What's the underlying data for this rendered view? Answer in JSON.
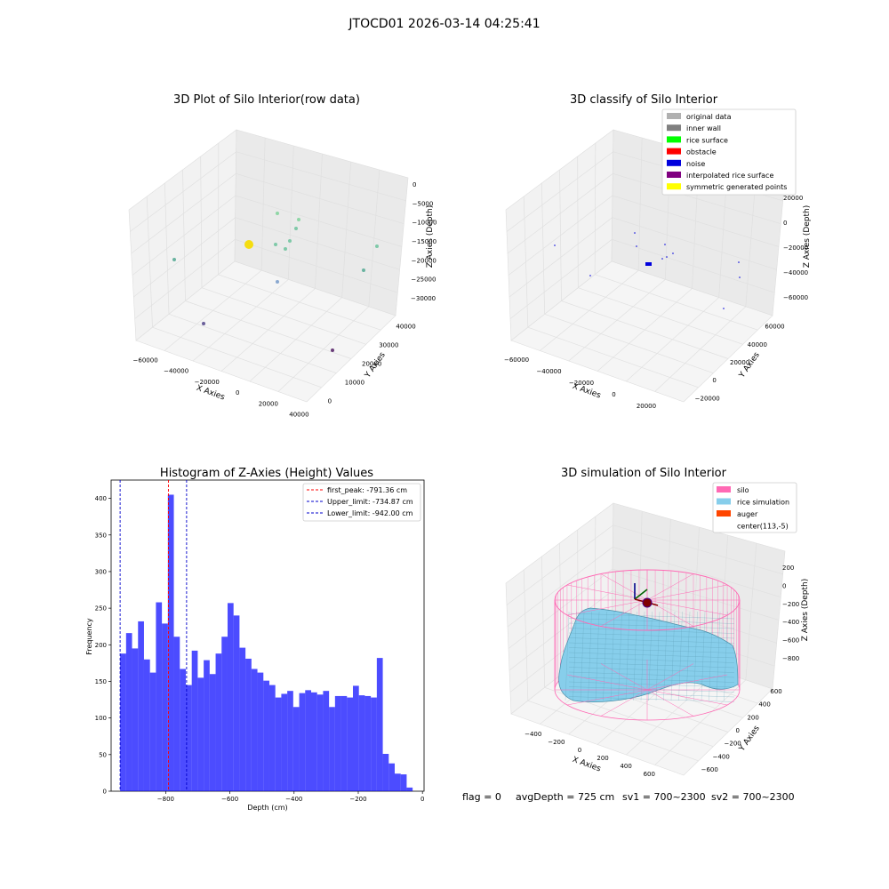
{
  "figure": {
    "suptitle": "JTOCD01 2026-03-14 04:25:41",
    "footer": {
      "flag": "flag = 0",
      "avg_depth": "avgDepth = 725 cm",
      "sv1": "sv1 = 700~2300",
      "sv2": "sv2 = 700~2300"
    }
  },
  "chart_data": [
    {
      "type": "scatter",
      "title": "3D Plot of Silo Interior(row data)",
      "xlabel": "X Axies",
      "ylabel": "Y Axies",
      "zlabel": "Z Axies (Depth)",
      "x_ticks": [
        "−60000",
        "−40000",
        "−20000",
        "0",
        "20000",
        "40000"
      ],
      "y_ticks": [
        "0",
        "10000",
        "20000",
        "30000",
        "40000"
      ],
      "z_ticks": [
        "0",
        "−5000",
        "−10000",
        "−15000",
        "−20000",
        "−25000",
        "−30000"
      ],
      "colors": [
        "#8fd6a6",
        "#7fc9a8",
        "#6ab3a0",
        "#8aa8d0",
        "#6a5f9a",
        "#6a3d7a",
        "#f5dd10"
      ],
      "grid": true
    },
    {
      "type": "scatter",
      "title": "3D classify of Silo Interior",
      "xlabel": "X Axies",
      "ylabel": "Y Axies",
      "zlabel": "Z Axies (Depth)",
      "x_ticks": [
        "−60000",
        "−40000",
        "−20000",
        "0",
        "20000"
      ],
      "y_ticks": [
        "−20000",
        "0",
        "20000",
        "40000",
        "60000"
      ],
      "z_ticks": [
        "20000",
        "0",
        "−20000",
        "−40000",
        "−60000"
      ],
      "legend": [
        {
          "label": "original data",
          "color": "#b0b0b0"
        },
        {
          "label": "inner wall",
          "color": "#808080"
        },
        {
          "label": "rice surface",
          "color": "#00ff00"
        },
        {
          "label": "obstacle",
          "color": "#ff0000"
        },
        {
          "label": "noise",
          "color": "#0000dd"
        },
        {
          "label": "interpolated rice surface",
          "color": "#800080"
        },
        {
          "label": "symmetric generated points",
          "color": "#ffff00"
        }
      ],
      "legend_position": "top-right",
      "grid": true
    },
    {
      "type": "bar",
      "title": "Histogram of Z-Axies (Height) Values",
      "xlabel": "Depth (cm)",
      "ylabel": "Frequency",
      "xlim": [
        -970,
        5
      ],
      "ylim": [
        0,
        425
      ],
      "bin_start": -942,
      "bin_width": 18.6,
      "values": [
        188,
        216,
        195,
        232,
        180,
        162,
        258,
        229,
        405,
        211,
        167,
        145,
        192,
        155,
        179,
        160,
        188,
        211,
        257,
        240,
        196,
        181,
        167,
        162,
        151,
        145,
        128,
        133,
        137,
        115,
        134,
        138,
        135,
        132,
        137,
        115,
        130,
        130,
        128,
        144,
        131,
        130,
        128,
        182,
        51,
        38,
        24,
        23,
        5
      ],
      "bar_color": "#0000ff",
      "x_ticks": [
        "−800",
        "−600",
        "−400",
        "−200",
        "0"
      ],
      "x_tick_values": [
        -800,
        -600,
        -400,
        -200,
        0
      ],
      "y_ticks": [
        "0",
        "50",
        "100",
        "150",
        "200",
        "250",
        "300",
        "350",
        "400"
      ],
      "y_tick_values": [
        0,
        50,
        100,
        150,
        200,
        250,
        300,
        350,
        400
      ],
      "lines": [
        {
          "label": "first_peak: -791.36 cm",
          "value": -791.36,
          "color": "#ff0000"
        },
        {
          "label": "Upper_limit: -734.87 cm",
          "value": -734.87,
          "color": "#0000cc"
        },
        {
          "label": "Lower_limit: -942.00 cm",
          "value": -942.0,
          "color": "#0000cc"
        }
      ],
      "legend_position": "top-right",
      "grid": false
    },
    {
      "type": "area",
      "title": "3D simulation of Silo Interior",
      "xlabel": "X Axies",
      "ylabel": "Y Axies",
      "zlabel": "Z Axies (Depth)",
      "x_ticks": [
        "−400",
        "−200",
        "0",
        "200",
        "400",
        "600"
      ],
      "y_ticks": [
        "−600",
        "−400",
        "−200",
        "0",
        "200",
        "400",
        "600"
      ],
      "z_ticks": [
        "200",
        "0",
        "−200",
        "−400",
        "−600",
        "−800"
      ],
      "legend": [
        {
          "label": "silo",
          "color": "#ff69b4"
        },
        {
          "label": "rice simulation",
          "color": "#87ceeb"
        },
        {
          "label": "auger",
          "color": "#ff4500"
        },
        {
          "label": "center(113,-5)",
          "color": ""
        }
      ],
      "legend_position": "top-right",
      "grid": true
    }
  ]
}
